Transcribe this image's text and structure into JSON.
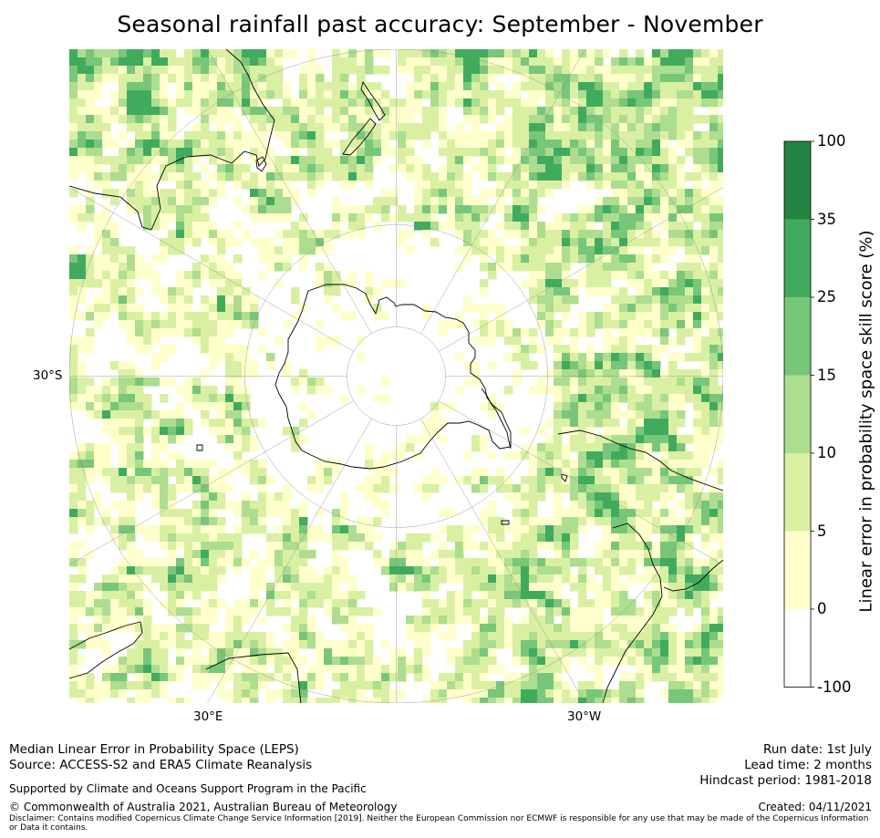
{
  "title": "Seasonal rainfall past accuracy: September - November",
  "map": {
    "projection": "south-polar-stereographic",
    "grid_labels": {
      "lat_left": "30°S",
      "lon_bottom_left": "30°E",
      "lon_bottom_right": "30°W"
    }
  },
  "colorbar": {
    "label": "Linear error in probability space skill score (%)",
    "ticks": [
      "100",
      "35",
      "25",
      "15",
      "10",
      "5",
      "0",
      "-100"
    ],
    "bins": [
      {
        "range": "35 - 100",
        "color": "#238443"
      },
      {
        "range": "25 - 35",
        "color": "#41ab5d"
      },
      {
        "range": "15 - 25",
        "color": "#78c679"
      },
      {
        "range": "10 - 15",
        "color": "#addd8e"
      },
      {
        "range": "5 - 10",
        "color": "#d9f0a3"
      },
      {
        "range": "0 - 5",
        "color": "#ffffcc"
      },
      {
        "range": "-100 - 0",
        "color": "#ffffff"
      }
    ]
  },
  "footer": {
    "left_line1": "Median Linear Error in Probability Space (LEPS)",
    "left_line2": "Source: ACCESS-S2 and ERA5 Climate Reanalysis",
    "support": "Supported by Climate and Oceans Support Program in the Pacific",
    "copyright": "© Commonwealth of Australia 2021, Australian Bureau of Meteorology",
    "disclaimer": "Disclaimer: Contains modified Copernicus Climate Change Service Information [2019]. Neither the European Commission nor ECMWF is responsible for any use that may be made of the Copernicus Information or Data it contains.",
    "run_date": "Run date: 1st July",
    "lead_time": "Lead time: 2 months",
    "hindcast": "Hindcast period: 1981-2018",
    "created": "Created: 04/11/2021"
  }
}
